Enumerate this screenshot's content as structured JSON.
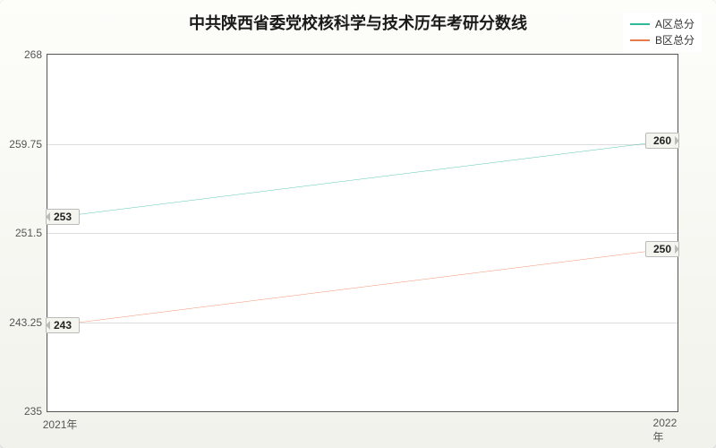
{
  "title": "中共陕西省委党校核科学与技术历年考研分数线",
  "legend": [
    {
      "label": "A区总分",
      "color": "#2fb89a"
    },
    {
      "label": "B区总分",
      "color": "#e87b4c"
    }
  ],
  "chart": {
    "type": "line",
    "ylim": [
      235,
      268
    ],
    "yticks": [
      235,
      243.25,
      251.5,
      259.75,
      268
    ],
    "ytick_labels": [
      "235",
      "243.25",
      "251.5",
      "259.75",
      "268"
    ],
    "xcategories": [
      "2021年",
      "2022年"
    ],
    "series": [
      {
        "name": "A区总分",
        "color": "#2fb89a",
        "values": [
          253,
          260
        ]
      },
      {
        "name": "B区总分",
        "color": "#e87b4c",
        "values": [
          243,
          250
        ]
      }
    ],
    "background_color": "#ffffff",
    "grid_color": "#dddddd",
    "line_width": 1.5,
    "title_fontsize": 18,
    "label_fontsize": 12
  }
}
